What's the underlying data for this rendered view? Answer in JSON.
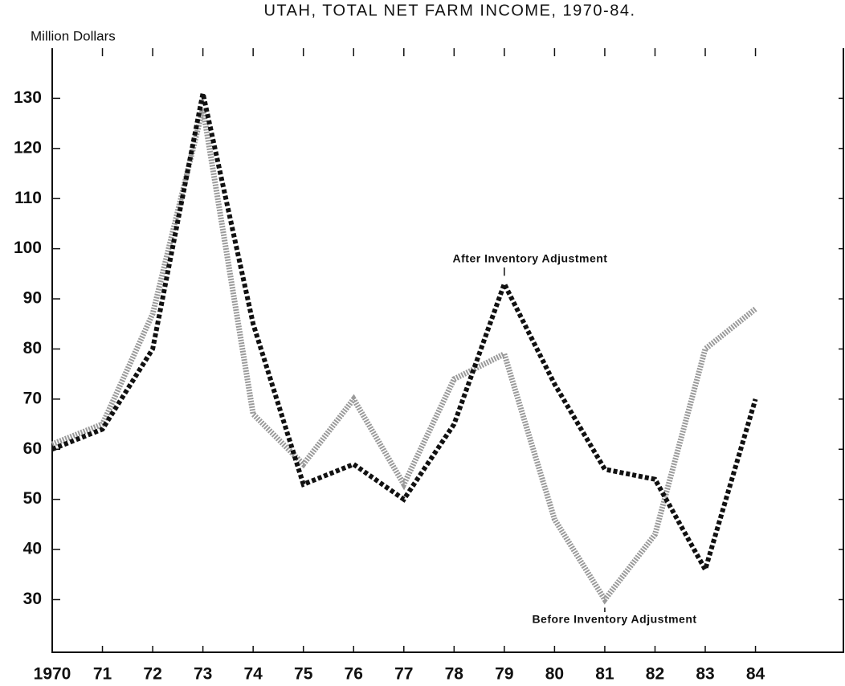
{
  "chart_data": {
    "type": "line",
    "title": "UTAH, TOTAL NET FARM INCOME, 1970-84.",
    "y_label": "Million Dollars",
    "x": [
      1970,
      1971,
      1972,
      1973,
      1974,
      1975,
      1976,
      1977,
      1978,
      1979,
      1980,
      1981,
      1982,
      1983,
      1984
    ],
    "series": [
      {
        "name": "After Inventory Adjustment",
        "color": "#111111",
        "values": [
          60,
          64,
          80,
          131,
          85,
          53,
          57,
          50,
          65,
          93,
          73,
          56,
          54,
          36,
          70
        ]
      },
      {
        "name": "Before Inventory Adjustment",
        "color": "#9a9a9a",
        "values": [
          61,
          65,
          87,
          128,
          67,
          57,
          70,
          53,
          74,
          79,
          46,
          30,
          43,
          80,
          88
        ]
      }
    ],
    "xlim": [
      1970,
      1985.75
    ],
    "xticks": [
      {
        "value": 1970,
        "label": "1970"
      },
      {
        "value": 1971,
        "label": "71"
      },
      {
        "value": 1972,
        "label": "72"
      },
      {
        "value": 1973,
        "label": "73"
      },
      {
        "value": 1974,
        "label": "74"
      },
      {
        "value": 1975,
        "label": "75"
      },
      {
        "value": 1976,
        "label": "76"
      },
      {
        "value": 1977,
        "label": "77"
      },
      {
        "value": 1978,
        "label": "78"
      },
      {
        "value": 1979,
        "label": "79"
      },
      {
        "value": 1980,
        "label": "80"
      },
      {
        "value": 1981,
        "label": "81"
      },
      {
        "value": 1982,
        "label": "82"
      },
      {
        "value": 1983,
        "label": "83"
      },
      {
        "value": 1984,
        "label": "84"
      }
    ],
    "ylim": [
      19.5,
      140
    ],
    "yticks": [
      30,
      40,
      50,
      60,
      70,
      80,
      90,
      100,
      110,
      120,
      130
    ],
    "grid": false
  }
}
